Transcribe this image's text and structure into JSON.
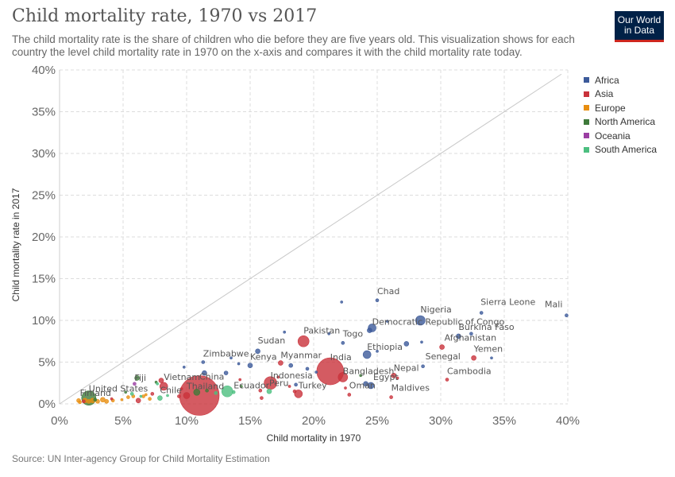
{
  "header": {
    "title": "Child mortality rate, 1970 vs 2017",
    "subtitle": "The child mortality rate is the share of children who die before they are five years old. This visualization shows for each country the level child mortality rate in 1970 on the x-axis and compares it with the child mortality rate today.",
    "logo_line1": "Our World",
    "logo_line2": "in Data"
  },
  "source": "Source: UN Inter-agency Group for Child Mortality Estimation",
  "legend": [
    {
      "name": "Africa",
      "color": "#3c5a9a"
    },
    {
      "name": "Asia",
      "color": "#c9323b"
    },
    {
      "name": "Europe",
      "color": "#e88e10"
    },
    {
      "name": "North America",
      "color": "#3e7a3a"
    },
    {
      "name": "Oceania",
      "color": "#9b3ea3"
    },
    {
      "name": "South America",
      "color": "#4cbf80"
    }
  ],
  "chart_data": {
    "type": "scatter",
    "title": "Child mortality rate, 1970 vs 2017",
    "xlabel": "Child mortality in 1970",
    "ylabel": "Child mortality rate in 2017",
    "xlim": [
      0,
      40
    ],
    "ylim": [
      0,
      40
    ],
    "xticks": [
      "0%",
      "5%",
      "10%",
      "15%",
      "20%",
      "25%",
      "30%",
      "35%",
      "40%"
    ],
    "yticks": [
      "0%",
      "5%",
      "10%",
      "15%",
      "20%",
      "25%",
      "30%",
      "35%",
      "40%"
    ],
    "grid": true,
    "legend_position": "top-right",
    "reference_line": "y = x",
    "points": [
      {
        "label": "Mali",
        "region": "Africa",
        "x": 39.9,
        "y": 10.6,
        "size": 2
      },
      {
        "label": "Sierra Leone",
        "region": "Africa",
        "x": 33.2,
        "y": 10.9,
        "size": 2
      },
      {
        "label": "Chad",
        "region": "Africa",
        "x": 25.0,
        "y": 12.4,
        "size": 2
      },
      {
        "label": "Nigeria",
        "region": "Africa",
        "x": 28.4,
        "y": 10.0,
        "size": 6
      },
      {
        "label": "Democratic Republic of Congo",
        "region": "Africa",
        "x": 24.6,
        "y": 9.1,
        "size": 5
      },
      {
        "label": "Burkina Faso",
        "region": "Africa",
        "x": 31.4,
        "y": 8.1,
        "size": 3
      },
      {
        "label": "Ethiopia",
        "region": "Africa",
        "x": 24.2,
        "y": 5.9,
        "size": 5
      },
      {
        "label": "Senegal",
        "region": "Africa",
        "x": 28.6,
        "y": 4.5,
        "size": 2
      },
      {
        "label": "Togo",
        "region": "Africa",
        "x": 22.3,
        "y": 7.3,
        "size": 2
      },
      {
        "label": "Sudan",
        "region": "Africa",
        "x": 15.6,
        "y": 6.3,
        "size": 3
      },
      {
        "label": "Kenya",
        "region": "Africa",
        "x": 15.0,
        "y": 4.6,
        "size": 3
      },
      {
        "label": "Zimbabwe",
        "region": "Africa",
        "x": 11.3,
        "y": 5.0,
        "size": 2
      },
      {
        "label": "Egypt",
        "region": "Africa",
        "x": 24.5,
        "y": 2.2,
        "size": 4
      },
      {
        "label": "Afghanistan",
        "region": "Asia",
        "x": 30.1,
        "y": 6.8,
        "size": 3
      },
      {
        "label": "Yemen",
        "region": "Asia",
        "x": 32.6,
        "y": 5.5,
        "size": 3
      },
      {
        "label": "Cambodia",
        "region": "Asia",
        "x": 30.5,
        "y": 2.9,
        "size": 2
      },
      {
        "label": "Nepal",
        "region": "Asia",
        "x": 26.3,
        "y": 3.4,
        "size": 3
      },
      {
        "label": "Pakistan",
        "region": "Asia",
        "x": 19.2,
        "y": 7.5,
        "size": 7
      },
      {
        "label": "India",
        "region": "Asia",
        "x": 21.3,
        "y": 3.9,
        "size": 17
      },
      {
        "label": "Bangladesh",
        "region": "Asia",
        "x": 22.3,
        "y": 3.2,
        "size": 6
      },
      {
        "label": "Myanmar",
        "region": "Asia",
        "x": 17.4,
        "y": 4.9,
        "size": 3
      },
      {
        "label": "Indonesia",
        "region": "Asia",
        "x": 16.6,
        "y": 2.5,
        "size": 8
      },
      {
        "label": "Oman",
        "region": "Asia",
        "x": 22.8,
        "y": 1.1,
        "size": 2
      },
      {
        "label": "Maldives",
        "region": "Asia",
        "x": 26.1,
        "y": 0.8,
        "size": 2
      },
      {
        "label": "Turkey",
        "region": "Asia",
        "x": 18.8,
        "y": 1.2,
        "size": 5
      },
      {
        "label": "China",
        "region": "Asia",
        "x": 11.0,
        "y": 1.0,
        "size": 25
      },
      {
        "label": "Vietnam",
        "region": "Asia",
        "x": 8.2,
        "y": 2.1,
        "size": 5
      },
      {
        "label": "Thailand",
        "region": "Asia",
        "x": 10.0,
        "y": 1.0,
        "size": 4
      },
      {
        "label": "Peru",
        "region": "South America",
        "x": 16.5,
        "y": 1.5,
        "size": 3
      },
      {
        "label": "Ecuador",
        "region": "South America",
        "x": 13.7,
        "y": 1.4,
        "size": 2
      },
      {
        "label": "Chile",
        "region": "South America",
        "x": 7.9,
        "y": 0.7,
        "size": 3
      },
      {
        "label": "United States",
        "region": "North America",
        "x": 2.3,
        "y": 0.7,
        "size": 9
      },
      {
        "label": "Fiji",
        "region": "Oceania",
        "x": 5.9,
        "y": 2.4,
        "size": 2
      },
      {
        "label": "Finland",
        "region": "Europe",
        "x": 1.6,
        "y": 0.2,
        "size": 2
      },
      {
        "label": "",
        "region": "South America",
        "x": 13.2,
        "y": 1.5,
        "size": 7
      },
      {
        "label": "",
        "region": "North America",
        "x": 10.8,
        "y": 1.4,
        "size": 4
      },
      {
        "label": "",
        "region": "Africa",
        "x": 22.2,
        "y": 12.2,
        "size": 1.5
      },
      {
        "label": "",
        "region": "Africa",
        "x": 17.7,
        "y": 8.6,
        "size": 1.5
      },
      {
        "label": "",
        "region": "Africa",
        "x": 21.2,
        "y": 8.4,
        "size": 1.5
      },
      {
        "label": "",
        "region": "Africa",
        "x": 24.4,
        "y": 8.8,
        "size": 3
      },
      {
        "label": "",
        "region": "Africa",
        "x": 27.3,
        "y": 7.2,
        "size": 3
      },
      {
        "label": "",
        "region": "Africa",
        "x": 28.5,
        "y": 7.4,
        "size": 1.5
      },
      {
        "label": "",
        "region": "Africa",
        "x": 32.4,
        "y": 8.4,
        "size": 2
      },
      {
        "label": "",
        "region": "Africa",
        "x": 34.0,
        "y": 5.5,
        "size": 1.5
      },
      {
        "label": "",
        "region": "Africa",
        "x": 25.8,
        "y": 9.9,
        "size": 1.5
      },
      {
        "label": "",
        "region": "Africa",
        "x": 9.8,
        "y": 4.4,
        "size": 1.5
      },
      {
        "label": "",
        "region": "Africa",
        "x": 14.1,
        "y": 4.8,
        "size": 1.5
      },
      {
        "label": "",
        "region": "Africa",
        "x": 13.5,
        "y": 5.5,
        "size": 1.5
      },
      {
        "label": "",
        "region": "Africa",
        "x": 13.1,
        "y": 3.7,
        "size": 2.5
      },
      {
        "label": "",
        "region": "Africa",
        "x": 18.2,
        "y": 4.6,
        "size": 2.5
      },
      {
        "label": "",
        "region": "Africa",
        "x": 19.5,
        "y": 4.2,
        "size": 2
      },
      {
        "label": "",
        "region": "Africa",
        "x": 20.2,
        "y": 3.8,
        "size": 1.5
      },
      {
        "label": "",
        "region": "Africa",
        "x": 11.4,
        "y": 3.7,
        "size": 3
      },
      {
        "label": "",
        "region": "Africa",
        "x": 18.6,
        "y": 2.3,
        "size": 2
      },
      {
        "label": "",
        "region": "Africa",
        "x": 24.1,
        "y": 2.4,
        "size": 3
      },
      {
        "label": "",
        "region": "Africa",
        "x": 25.0,
        "y": 6.3,
        "size": 1.5
      },
      {
        "label": "",
        "region": "Asia",
        "x": 17.2,
        "y": 3.2,
        "size": 1.5
      },
      {
        "label": "",
        "region": "Asia",
        "x": 18.1,
        "y": 2.1,
        "size": 1.5
      },
      {
        "label": "",
        "region": "Asia",
        "x": 14.2,
        "y": 2.9,
        "size": 1.5
      },
      {
        "label": "",
        "region": "Asia",
        "x": 15.8,
        "y": 1.6,
        "size": 2
      },
      {
        "label": "",
        "region": "Asia",
        "x": 15.9,
        "y": 0.7,
        "size": 2
      },
      {
        "label": "",
        "region": "Asia",
        "x": 18.5,
        "y": 1.5,
        "size": 2
      },
      {
        "label": "",
        "region": "Asia",
        "x": 22.5,
        "y": 1.9,
        "size": 1.5
      },
      {
        "label": "",
        "region": "Asia",
        "x": 26.6,
        "y": 3.1,
        "size": 1.5
      },
      {
        "label": "",
        "region": "Asia",
        "x": 8.0,
        "y": 2.8,
        "size": 3
      },
      {
        "label": "",
        "region": "Asia",
        "x": 7.3,
        "y": 1.2,
        "size": 2
      },
      {
        "label": "",
        "region": "Asia",
        "x": 6.2,
        "y": 0.4,
        "size": 3
      },
      {
        "label": "",
        "region": "Asia",
        "x": 4.1,
        "y": 0.6,
        "size": 1.5
      },
      {
        "label": "",
        "region": "Asia",
        "x": 9.4,
        "y": 0.9,
        "size": 2
      },
      {
        "label": "",
        "region": "Asia",
        "x": 1.9,
        "y": 0.3,
        "size": 2
      },
      {
        "label": "",
        "region": "Asia",
        "x": 9.6,
        "y": 1.8,
        "size": 1.5
      },
      {
        "label": "",
        "region": "Europe",
        "x": 1.5,
        "y": 0.4,
        "size": 2.5
      },
      {
        "label": "",
        "region": "Europe",
        "x": 2.0,
        "y": 0.4,
        "size": 3
      },
      {
        "label": "",
        "region": "Europe",
        "x": 2.6,
        "y": 0.4,
        "size": 3
      },
      {
        "label": "",
        "region": "Europe",
        "x": 3.0,
        "y": 0.3,
        "size": 2.5
      },
      {
        "label": "",
        "region": "Europe",
        "x": 3.4,
        "y": 0.5,
        "size": 3
      },
      {
        "label": "",
        "region": "Europe",
        "x": 3.7,
        "y": 0.3,
        "size": 2.5
      },
      {
        "label": "",
        "region": "Europe",
        "x": 4.2,
        "y": 0.4,
        "size": 2
      },
      {
        "label": "",
        "region": "Europe",
        "x": 2.3,
        "y": 0.3,
        "size": 2.5
      },
      {
        "label": "",
        "region": "Europe",
        "x": 5.4,
        "y": 0.8,
        "size": 2
      },
      {
        "label": "",
        "region": "Europe",
        "x": 5.8,
        "y": 0.9,
        "size": 2
      },
      {
        "label": "",
        "region": "Europe",
        "x": 6.6,
        "y": 0.9,
        "size": 2
      },
      {
        "label": "",
        "region": "Europe",
        "x": 7.1,
        "y": 0.6,
        "size": 2
      },
      {
        "label": "",
        "region": "Europe",
        "x": 4.9,
        "y": 0.5,
        "size": 1.5
      },
      {
        "label": "",
        "region": "Europe",
        "x": 6.8,
        "y": 1.1,
        "size": 1.5
      },
      {
        "label": "",
        "region": "North America",
        "x": 6.1,
        "y": 3.1,
        "size": 3
      },
      {
        "label": "",
        "region": "North America",
        "x": 7.6,
        "y": 2.6,
        "size": 1.5
      },
      {
        "label": "",
        "region": "North America",
        "x": 11.6,
        "y": 1.6,
        "size": 2
      },
      {
        "label": "",
        "region": "North America",
        "x": 14.3,
        "y": 2.1,
        "size": 1.5
      },
      {
        "label": "",
        "region": "North America",
        "x": 2.8,
        "y": 0.5,
        "size": 2
      },
      {
        "label": "",
        "region": "North America",
        "x": 23.7,
        "y": 3.4,
        "size": 1.5
      },
      {
        "label": "",
        "region": "North America",
        "x": 5.2,
        "y": 1.4,
        "size": 1.5
      },
      {
        "label": "",
        "region": "South America",
        "x": 5.7,
        "y": 1.2,
        "size": 2
      },
      {
        "label": "",
        "region": "South America",
        "x": 7.7,
        "y": 2.4,
        "size": 1.5
      },
      {
        "label": "",
        "region": "South America",
        "x": 8.5,
        "y": 1.0,
        "size": 1.5
      },
      {
        "label": "",
        "region": "South America",
        "x": 6.4,
        "y": 0.9,
        "size": 1.5
      },
      {
        "label": "",
        "region": "South America",
        "x": 12.3,
        "y": 1.3,
        "size": 2
      }
    ]
  }
}
